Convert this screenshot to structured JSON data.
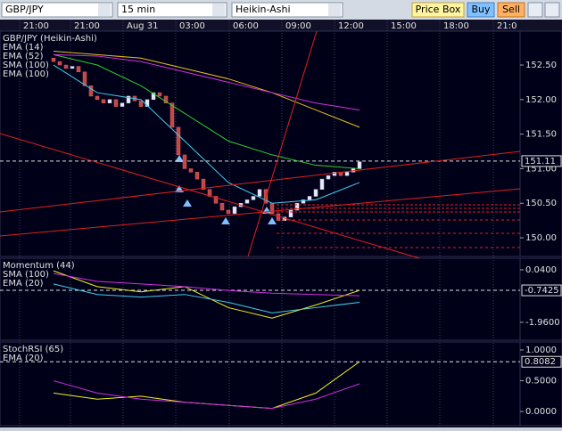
{
  "toolbar": {
    "symbol": "GBP/JPY",
    "interval": "15 min",
    "style": "Heikin-Ashi",
    "buttons": [
      "Price Box",
      "Buy",
      "Sell"
    ]
  },
  "time_axis": [
    "0",
    "21:00",
    "21:00",
    "Aug 31",
    "03:00",
    "06:00",
    "09:00",
    "12:00",
    "15:00",
    "18:00",
    "21:0"
  ],
  "panels": [
    {
      "name": "GBP/JPY (Heikin-Ashi)",
      "ylim": [
        149.73,
        152.99
      ],
      "yticks": [
        {
          "value": 152.5,
          "label": "152.50"
        },
        {
          "value": 152,
          "label": "152.00"
        },
        {
          "value": 151.5,
          "label": "151.50"
        },
        {
          "value": 151,
          "label": "151.00"
        },
        {
          "value": 150.5,
          "label": "150.50"
        },
        {
          "value": 150,
          "label": "150.00"
        }
      ],
      "current": 151.11,
      "candles": {
        "open": [
          152.6,
          152.55,
          152.5,
          152.45,
          152.48,
          152.4,
          152.2,
          152.05,
          152.0,
          151.95,
          152.0,
          151.9,
          151.95,
          152.05,
          151.98,
          151.9,
          152.0,
          152.1,
          152.05,
          151.95,
          151.6,
          151.2,
          151.0,
          150.95,
          150.85,
          150.7,
          150.6,
          150.5,
          150.4,
          150.35,
          150.45,
          150.5,
          150.55,
          150.6,
          150.7,
          150.5,
          150.35,
          150.25,
          150.3,
          150.4,
          150.5,
          150.55,
          150.6,
          150.7,
          150.85,
          150.9,
          150.95,
          150.9,
          150.95,
          151.0
        ],
        "close": [
          152.55,
          152.5,
          152.45,
          152.48,
          152.4,
          152.2,
          152.05,
          152.0,
          151.95,
          152.0,
          151.9,
          151.95,
          152.05,
          151.98,
          151.9,
          152.0,
          152.1,
          152.05,
          151.95,
          151.6,
          151.2,
          151.0,
          150.95,
          150.85,
          150.7,
          150.6,
          150.5,
          150.4,
          150.35,
          150.45,
          150.5,
          150.55,
          150.6,
          150.7,
          150.5,
          150.35,
          150.25,
          150.3,
          150.4,
          150.5,
          150.55,
          150.6,
          150.7,
          150.85,
          150.9,
          150.95,
          150.9,
          150.95,
          151.0,
          151.1
        ]
      },
      "lines": [
        {
          "name": "EMA (14)",
          "color": "#40d0f0",
          "x": [
            0,
            7,
            14,
            21,
            28,
            35,
            42,
            49
          ],
          "values": [
            152.5,
            152.1,
            152.0,
            151.4,
            150.8,
            150.5,
            150.55,
            150.8
          ]
        },
        {
          "name": "EMA (52)",
          "color": "#30d030",
          "x": [
            0,
            7,
            14,
            21,
            28,
            35,
            42,
            49
          ],
          "values": [
            152.65,
            152.5,
            152.2,
            151.8,
            151.4,
            151.2,
            151.05,
            151.0
          ]
        },
        {
          "name": "SMA (100)",
          "color": "#e8c020",
          "x": [
            0,
            7,
            14,
            21,
            28,
            35,
            42,
            49
          ],
          "values": [
            152.7,
            152.65,
            152.6,
            152.45,
            152.3,
            152.1,
            151.85,
            151.6
          ]
        },
        {
          "name": "EMA (100)",
          "color": "#d030e0",
          "x": [
            0,
            7,
            14,
            21,
            28,
            35,
            42,
            49
          ],
          "values": [
            152.65,
            152.63,
            152.55,
            152.4,
            152.25,
            152.1,
            151.95,
            151.85
          ]
        }
      ]
    },
    {
      "name": "Momentum (44)",
      "ylim": [
        -2.64,
        0.48
      ],
      "yticks": [
        {
          "value": 0.04,
          "label": "0.0400"
        },
        {
          "value": -1.96,
          "label": "-1.9600"
        }
      ],
      "current": -0.7425,
      "lines": [
        {
          "name": null,
          "color": "#f0f020",
          "x": [
            0,
            7,
            14,
            21,
            28,
            35,
            42,
            49
          ],
          "values": [
            0.0,
            -0.6,
            -0.8,
            -0.6,
            -1.4,
            -1.8,
            -1.3,
            -0.7425
          ]
        },
        {
          "name": "SMA (100)",
          "color": "#d030e0",
          "x": [
            0,
            7,
            14,
            21,
            28,
            35,
            42,
            49
          ],
          "values": [
            -0.1,
            -0.4,
            -0.5,
            -0.6,
            -0.75,
            -0.85,
            -0.9,
            -0.95
          ]
        },
        {
          "name": "EMA (20)",
          "color": "#40d0f0",
          "x": [
            0,
            7,
            14,
            21,
            28,
            35,
            42,
            49
          ],
          "values": [
            -0.5,
            -0.9,
            -1.0,
            -0.9,
            -1.2,
            -1.6,
            -1.4,
            -1.2
          ]
        }
      ]
    },
    {
      "name": "StochRSI (65)",
      "ylim": [
        -0.23,
        1.13
      ],
      "yticks": [
        {
          "value": 1,
          "label": "1.0000"
        },
        {
          "value": 0.5,
          "label": "0.5000"
        },
        {
          "value": 0,
          "label": "0.0000"
        }
      ],
      "current": 0.8082,
      "lines": [
        {
          "name": null,
          "color": "#f0f020",
          "x": [
            0,
            7,
            14,
            21,
            28,
            35,
            42,
            49
          ],
          "values": [
            0.3,
            0.2,
            0.25,
            0.15,
            0.1,
            0.05,
            0.3,
            0.8082
          ]
        },
        {
          "name": "EMA (20)",
          "color": "#d030e0",
          "x": [
            0,
            7,
            14,
            21,
            28,
            35,
            42,
            49
          ],
          "values": [
            0.5,
            0.3,
            0.2,
            0.15,
            0.1,
            0.05,
            0.2,
            0.45
          ]
        }
      ]
    }
  ]
}
